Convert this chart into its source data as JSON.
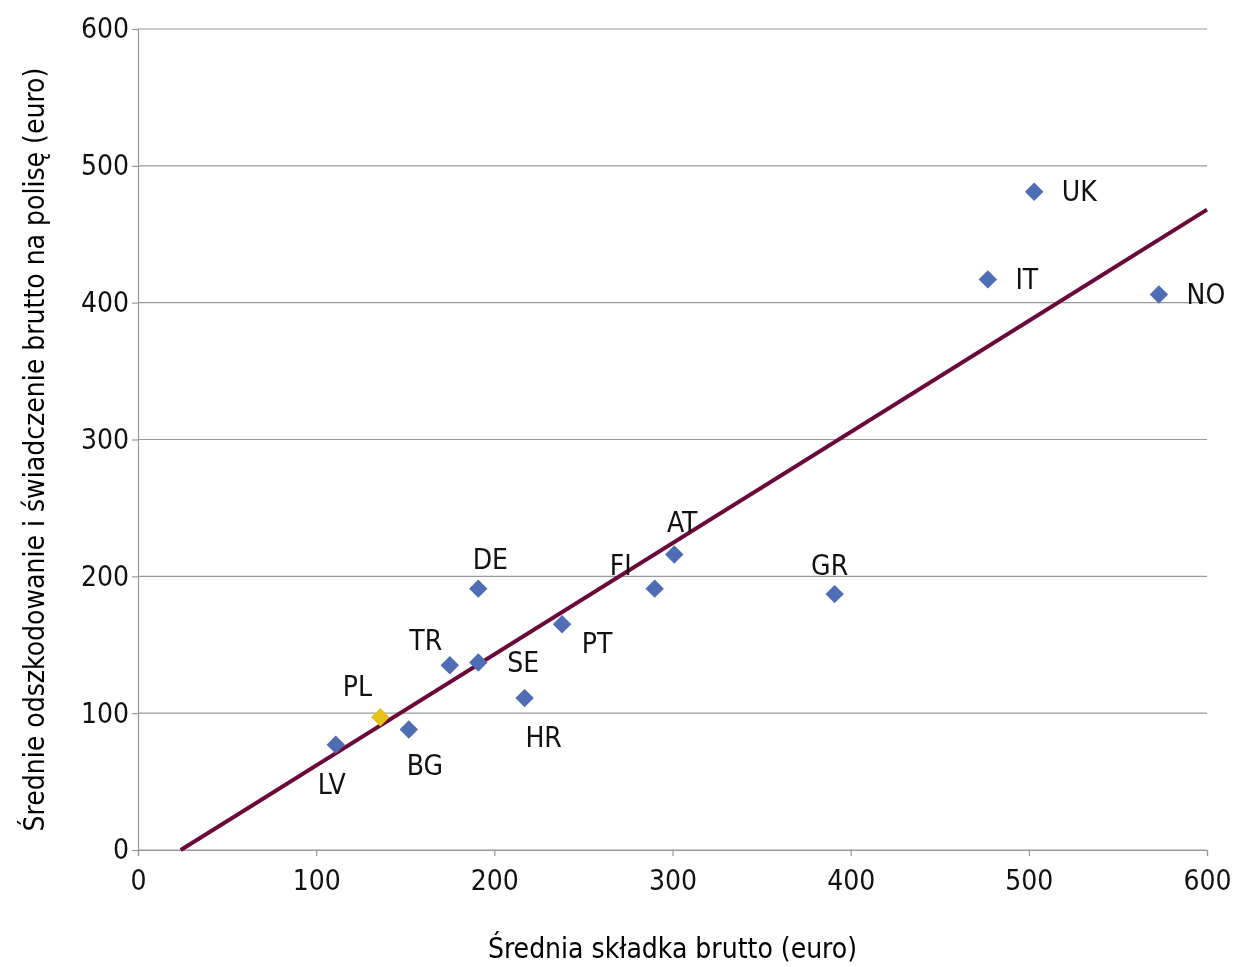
{
  "chart_data": {
    "type": "scatter",
    "xlabel": "Średnia składka brutto (euro)",
    "ylabel": "Średnie odszkodowanie i świadczenie brutto na polisę (euro)",
    "xlim": [
      0,
      600
    ],
    "xticks": [
      0,
      100,
      200,
      300,
      400,
      500,
      600
    ],
    "ylim": [
      0,
      600
    ],
    "yticks": [
      0,
      100,
      200,
      300,
      400,
      500,
      600
    ],
    "grid": "y",
    "marker": "diamond",
    "series": [
      {
        "x": [
          111,
          136,
          152,
          175,
          191,
          191,
          217,
          238,
          290,
          301,
          391,
          477,
          503,
          573
        ],
        "values": [
          77,
          97,
          88,
          135,
          137,
          191,
          111,
          165,
          191,
          216,
          187,
          417,
          481,
          406
        ],
        "colors": [
          "#4f6db5",
          "#e6c11e",
          "#4f6db5",
          "#4f6db5",
          "#4f6db5",
          "#4f6db5",
          "#4f6db5",
          "#4f6db5",
          "#4f6db5",
          "#4f6db5",
          "#4f6db5",
          "#4f6db5",
          "#4f6db5",
          "#4f6db5"
        ]
      },
      {
        "type": "line",
        "x": [
          24,
          600
        ],
        "values": [
          0,
          468
        ],
        "color": "#6b0a3a",
        "marker": "none"
      }
    ],
    "annotations": [
      {
        "text": "LV",
        "x": 111,
        "y": 77
      },
      {
        "text": "PL",
        "x": 136,
        "y": 97
      },
      {
        "text": "BG",
        "x": 152,
        "y": 88
      },
      {
        "text": "TR",
        "x": 175,
        "y": 135
      },
      {
        "text": "SE",
        "x": 191,
        "y": 137
      },
      {
        "text": "DE",
        "x": 191,
        "y": 191
      },
      {
        "text": "HR",
        "x": 217,
        "y": 111
      },
      {
        "text": "PT",
        "x": 238,
        "y": 165
      },
      {
        "text": "FI",
        "x": 290,
        "y": 191
      },
      {
        "text": "AT",
        "x": 301,
        "y": 216
      },
      {
        "text": "GR",
        "x": 391,
        "y": 187
      },
      {
        "text": "IT",
        "x": 477,
        "y": 417
      },
      {
        "text": "UK",
        "x": 503,
        "y": 481
      },
      {
        "text": "NO",
        "x": 573,
        "y": 406
      }
    ]
  }
}
